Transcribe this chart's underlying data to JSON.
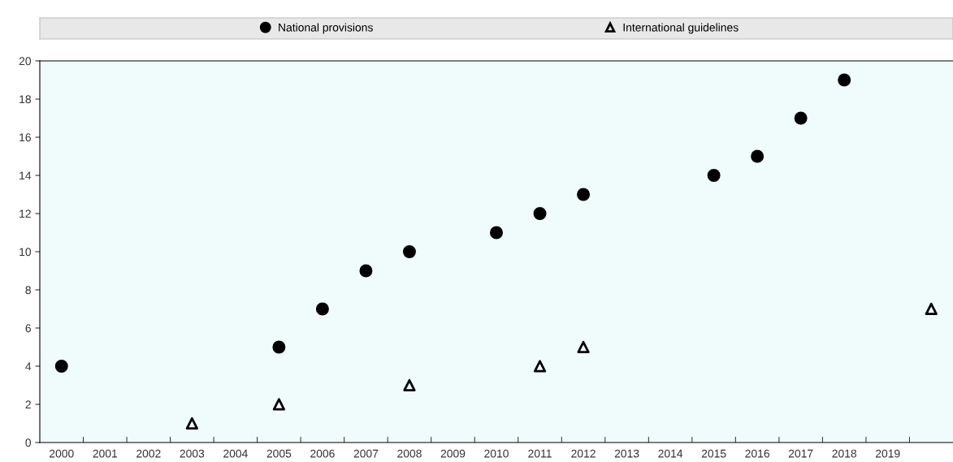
{
  "chart_data": {
    "type": "scatter",
    "categories": [
      "2000",
      "2001",
      "2002",
      "2003",
      "2004",
      "2005",
      "2006",
      "2007",
      "2008",
      "2009",
      "2010",
      "2011",
      "2012",
      "2013",
      "2014",
      "2015",
      "2016",
      "2017",
      "2018",
      "2019",
      null
    ],
    "series": [
      {
        "name": "National provisions",
        "color": "#000000",
        "marker": "circle",
        "values": [
          4,
          null,
          null,
          null,
          null,
          5,
          7,
          9,
          10,
          null,
          11,
          12,
          13,
          null,
          null,
          14,
          15,
          17,
          19,
          null,
          null
        ]
      },
      {
        "name": "International guidelines",
        "color": "#000000",
        "marker": "triangle",
        "values": [
          null,
          null,
          null,
          1,
          null,
          2,
          null,
          null,
          3,
          null,
          null,
          4,
          5,
          null,
          null,
          null,
          null,
          null,
          null,
          null,
          7
        ]
      }
    ],
    "ylim": [
      0,
      20
    ],
    "yticks": [
      0,
      2,
      4,
      6,
      8,
      10,
      12,
      14,
      16,
      18,
      20
    ],
    "grid": false,
    "legend": "top"
  }
}
